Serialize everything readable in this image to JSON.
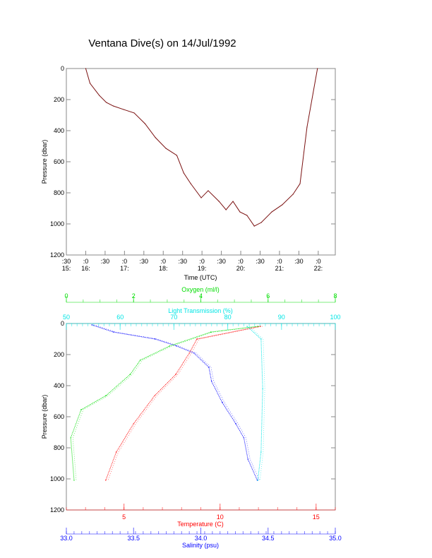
{
  "chart_data": [
    {
      "type": "line",
      "title": "Ventana Dive(s) on 14/Jul/1992",
      "xlabel": "Time (UTC)",
      "ylabel": "Pressure (dbar)",
      "xlim": [
        15.5,
        22.44
      ],
      "ylim": [
        1200,
        0
      ],
      "xticks": [
        {
          "v": 15.5,
          "l1": ":30",
          "l2": "15:"
        },
        {
          "v": 16,
          "l1": ":0",
          "l2": "16:"
        },
        {
          "v": 16.5,
          "l1": ":30",
          "l2": ""
        },
        {
          "v": 17,
          "l1": ":0",
          "l2": "17:"
        },
        {
          "v": 17.5,
          "l1": ":30",
          "l2": ""
        },
        {
          "v": 18,
          "l1": ":0",
          "l2": "18:"
        },
        {
          "v": 18.5,
          "l1": ":30",
          "l2": ""
        },
        {
          "v": 19,
          "l1": ":0",
          "l2": "19:"
        },
        {
          "v": 19.5,
          "l1": ":30",
          "l2": ""
        },
        {
          "v": 20,
          "l1": ":0",
          "l2": "20:"
        },
        {
          "v": 20.5,
          "l1": ":30",
          "l2": ""
        },
        {
          "v": 21,
          "l1": ":0",
          "l2": "21:"
        },
        {
          "v": 21.5,
          "l1": ":30",
          "l2": ""
        },
        {
          "v": 22,
          "l1": ":0",
          "l2": "22:"
        }
      ],
      "yticks": [
        "0",
        "200",
        "400",
        "600",
        "800",
        "1000",
        "1200"
      ],
      "series": [
        {
          "name": "dive",
          "color": "#7a1010",
          "x": [
            16.0,
            16.11,
            16.35,
            16.53,
            16.71,
            16.98,
            17.25,
            17.53,
            17.8,
            18.07,
            18.35,
            18.53,
            18.71,
            18.98,
            19.16,
            19.44,
            19.62,
            19.8,
            19.98,
            20.16,
            20.35,
            20.53,
            20.8,
            21.07,
            21.35,
            21.53,
            21.71,
            21.98
          ],
          "y": [
            0,
            95,
            173,
            218,
            241,
            264,
            286,
            355,
            445,
            514,
            559,
            673,
            741,
            832,
            786,
            855,
            909,
            855,
            923,
            945,
            1014,
            991,
            923,
            877,
            809,
            741,
            377,
            0
          ]
        }
      ]
    },
    {
      "type": "line",
      "ylabel": "Pressure (dbar)",
      "ylim": [
        1200,
        0
      ],
      "yticks": [
        "0",
        "200",
        "400",
        "600",
        "800",
        "1000",
        "1200"
      ],
      "axes": {
        "oxygen": {
          "label": "Oxygen (ml/l)",
          "range": [
            0,
            8
          ],
          "ticks": [
            "0",
            "2",
            "4",
            "6",
            "8"
          ],
          "color": "#00dd00"
        },
        "light": {
          "label": "Light Transmission (%)",
          "range": [
            50,
            100
          ],
          "ticks": [
            "50",
            "60",
            "70",
            "80",
            "90",
            "100"
          ],
          "color": "#00e5e5"
        },
        "temperature": {
          "label": "Temperature (C)",
          "range": [
            2,
            16
          ],
          "ticks": [
            "5",
            "10",
            "15"
          ],
          "color": "#ff0000"
        },
        "salinity": {
          "label": "Salinity (psu)",
          "range": [
            33.0,
            35.0
          ],
          "ticks": [
            "33.0",
            "33.5",
            "34.0",
            "34.5",
            "35.0"
          ],
          "color": "#0000ff"
        }
      },
      "series": [
        {
          "name": "Salinity",
          "axis": "salinity",
          "color": "#0000ff",
          "x": [
            33.19,
            33.35,
            33.66,
            33.82,
            33.95,
            34.06,
            34.08,
            34.16,
            34.26,
            34.32,
            34.35,
            34.42
          ],
          "y": [
            9,
            55,
            100,
            145,
            191,
            282,
            373,
            509,
            645,
            736,
            873,
            1009
          ]
        },
        {
          "name": "Temperature",
          "axis": "temperature",
          "color": "#ff0000",
          "x": [
            12.1,
            8.8,
            8.4,
            7.7,
            6.6,
            5.5,
            4.6,
            4.05
          ],
          "y": [
            18,
            100,
            191,
            327,
            464,
            645,
            827,
            1009
          ]
        },
        {
          "name": "Oxygen",
          "axis": "oxygen",
          "color": "#00dd00",
          "x": [
            5.7,
            4.3,
            3.07,
            2.2,
            1.9,
            1.18,
            0.44,
            0.13,
            0.23
          ],
          "y": [
            18,
            55,
            145,
            236,
            327,
            464,
            555,
            736,
            1009
          ]
        },
        {
          "name": "Light Transmission",
          "axis": "light",
          "color": "#00e5e5",
          "x": [
            83.6,
            86.2,
            86.5,
            86.2,
            85.6
          ],
          "y": [
            18,
            100,
            418,
            827,
            1009
          ]
        }
      ]
    }
  ]
}
